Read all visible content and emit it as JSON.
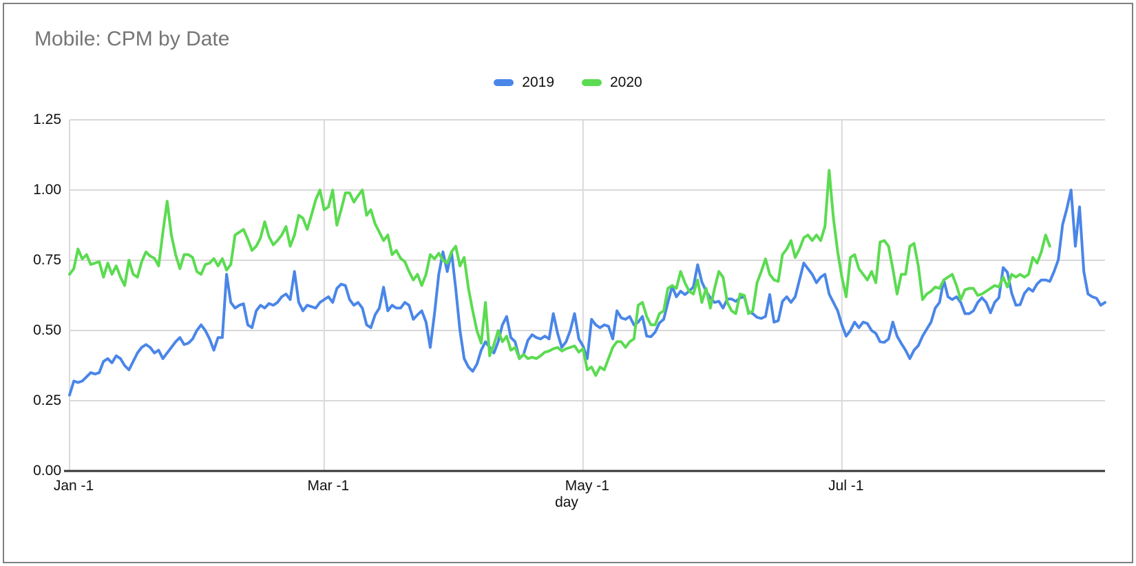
{
  "chart_data": {
    "type": "line",
    "title": "Mobile: CPM by Date",
    "xlabel": "day",
    "ylabel": "",
    "ylim": [
      0,
      1.25
    ],
    "grid": true,
    "legend_position": "top-center",
    "y_tick_labels": [
      "0.00",
      "0.25",
      "0.50",
      "0.75",
      "1.00",
      "1.25"
    ],
    "y_tick_values": [
      0,
      0.25,
      0.5,
      0.75,
      1.0,
      1.25
    ],
    "x_tick_labels": [
      "Jan -1",
      "Mar -1",
      "May -1",
      "Jul -1"
    ],
    "x_tick_days": [
      0,
      60,
      121,
      182
    ],
    "x_max_day": 244,
    "x_unit": "days since Jan 1",
    "axis_color": "#333333",
    "gridline_color": "#d9d9d9",
    "series": [
      {
        "name": "2019",
        "color": "#4a86e8",
        "start_day": 0,
        "values": [
          0.27,
          0.32,
          0.315,
          0.32,
          0.335,
          0.35,
          0.345,
          0.35,
          0.39,
          0.4,
          0.385,
          0.41,
          0.4,
          0.375,
          0.36,
          0.39,
          0.42,
          0.44,
          0.45,
          0.44,
          0.42,
          0.43,
          0.4,
          0.42,
          0.44,
          0.46,
          0.475,
          0.45,
          0.455,
          0.47,
          0.5,
          0.52,
          0.5,
          0.47,
          0.43,
          0.475,
          0.475,
          0.7,
          0.6,
          0.58,
          0.59,
          0.595,
          0.52,
          0.51,
          0.57,
          0.59,
          0.58,
          0.596,
          0.59,
          0.6,
          0.62,
          0.63,
          0.61,
          0.71,
          0.6,
          0.57,
          0.59,
          0.585,
          0.58,
          0.6,
          0.61,
          0.62,
          0.6,
          0.65,
          0.665,
          0.66,
          0.61,
          0.59,
          0.6,
          0.58,
          0.52,
          0.51,
          0.556,
          0.58,
          0.654,
          0.57,
          0.59,
          0.58,
          0.58,
          0.6,
          0.59,
          0.54,
          0.556,
          0.57,
          0.53,
          0.44,
          0.56,
          0.7,
          0.78,
          0.71,
          0.78,
          0.65,
          0.5,
          0.4,
          0.37,
          0.355,
          0.38,
          0.43,
          0.46,
          0.44,
          0.42,
          0.46,
          0.52,
          0.55,
          0.475,
          0.46,
          0.4,
          0.415,
          0.465,
          0.485,
          0.475,
          0.47,
          0.48,
          0.47,
          0.56,
          0.49,
          0.44,
          0.46,
          0.5,
          0.56,
          0.47,
          0.445,
          0.4,
          0.54,
          0.52,
          0.51,
          0.52,
          0.515,
          0.47,
          0.57,
          0.545,
          0.54,
          0.55,
          0.52,
          0.53,
          0.55,
          0.48,
          0.478,
          0.494,
          0.527,
          0.54,
          0.6,
          0.657,
          0.62,
          0.64,
          0.628,
          0.64,
          0.655,
          0.734,
          0.673,
          0.64,
          0.616,
          0.6,
          0.604,
          0.58,
          0.612,
          0.612,
          0.604,
          0.616,
          0.62,
          0.567,
          0.56,
          0.547,
          0.543,
          0.55,
          0.628,
          0.53,
          0.535,
          0.604,
          0.62,
          0.6,
          0.62,
          0.68,
          0.74,
          0.72,
          0.7,
          0.67,
          0.69,
          0.7,
          0.63,
          0.6,
          0.57,
          0.52,
          0.48,
          0.5,
          0.53,
          0.51,
          0.53,
          0.525,
          0.5,
          0.49,
          0.46,
          0.458,
          0.47,
          0.53,
          0.48,
          0.454,
          0.43,
          0.4,
          0.43,
          0.446,
          0.48,
          0.505,
          0.53,
          0.58,
          0.6,
          0.68,
          0.62,
          0.61,
          0.62,
          0.6,
          0.56,
          0.56,
          0.57,
          0.6,
          0.617,
          0.6,
          0.563,
          0.6,
          0.617,
          0.724,
          0.707,
          0.633,
          0.59,
          0.592,
          0.632,
          0.65,
          0.64,
          0.666,
          0.68,
          0.68,
          0.675,
          0.71,
          0.752,
          0.877,
          0.933,
          1.0,
          0.8,
          0.94,
          0.71,
          0.63,
          0.62,
          0.615,
          0.59,
          0.6
        ]
      },
      {
        "name": "2020",
        "color": "#5bdb51",
        "start_day": 0,
        "values": [
          0.7,
          0.72,
          0.79,
          0.755,
          0.77,
          0.735,
          0.74,
          0.745,
          0.69,
          0.74,
          0.7,
          0.73,
          0.69,
          0.66,
          0.75,
          0.7,
          0.69,
          0.745,
          0.78,
          0.765,
          0.757,
          0.73,
          0.85,
          0.96,
          0.84,
          0.77,
          0.72,
          0.77,
          0.77,
          0.76,
          0.71,
          0.7,
          0.735,
          0.74,
          0.756,
          0.73,
          0.756,
          0.715,
          0.735,
          0.84,
          0.85,
          0.86,
          0.825,
          0.785,
          0.8,
          0.83,
          0.887,
          0.834,
          0.805,
          0.82,
          0.84,
          0.87,
          0.8,
          0.84,
          0.91,
          0.9,
          0.86,
          0.91,
          0.965,
          1.0,
          0.93,
          0.94,
          1.0,
          0.875,
          0.93,
          0.99,
          0.99,
          0.957,
          0.98,
          1.0,
          0.91,
          0.93,
          0.88,
          0.85,
          0.82,
          0.84,
          0.77,
          0.785,
          0.757,
          0.745,
          0.71,
          0.68,
          0.7,
          0.66,
          0.7,
          0.77,
          0.755,
          0.775,
          0.75,
          0.74,
          0.78,
          0.8,
          0.73,
          0.76,
          0.65,
          0.57,
          0.5,
          0.455,
          0.6,
          0.41,
          0.45,
          0.5,
          0.46,
          0.48,
          0.43,
          0.44,
          0.4,
          0.415,
          0.4,
          0.405,
          0.4,
          0.41,
          0.423,
          0.427,
          0.435,
          0.44,
          0.427,
          0.435,
          0.44,
          0.445,
          0.423,
          0.435,
          0.36,
          0.37,
          0.34,
          0.37,
          0.36,
          0.4,
          0.44,
          0.46,
          0.46,
          0.44,
          0.46,
          0.47,
          0.59,
          0.6,
          0.55,
          0.52,
          0.52,
          0.56,
          0.57,
          0.65,
          0.66,
          0.65,
          0.71,
          0.67,
          0.64,
          0.63,
          0.68,
          0.6,
          0.65,
          0.58,
          0.65,
          0.71,
          0.69,
          0.6,
          0.57,
          0.56,
          0.63,
          0.625,
          0.56,
          0.57,
          0.67,
          0.71,
          0.755,
          0.7,
          0.68,
          0.675,
          0.77,
          0.79,
          0.82,
          0.76,
          0.79,
          0.83,
          0.84,
          0.82,
          0.84,
          0.82,
          0.87,
          1.07,
          0.9,
          0.78,
          0.69,
          0.62,
          0.76,
          0.77,
          0.72,
          0.7,
          0.68,
          0.71,
          0.67,
          0.815,
          0.82,
          0.8,
          0.72,
          0.63,
          0.7,
          0.7,
          0.8,
          0.81,
          0.73,
          0.61,
          0.63,
          0.64,
          0.655,
          0.65,
          0.68,
          0.69,
          0.7,
          0.66,
          0.61,
          0.645,
          0.65,
          0.65,
          0.625,
          0.63,
          0.64,
          0.65,
          0.66,
          0.655,
          0.69,
          0.655,
          0.7,
          0.69,
          0.7,
          0.69,
          0.7,
          0.76,
          0.74,
          0.78,
          0.84,
          0.8
        ]
      }
    ]
  }
}
